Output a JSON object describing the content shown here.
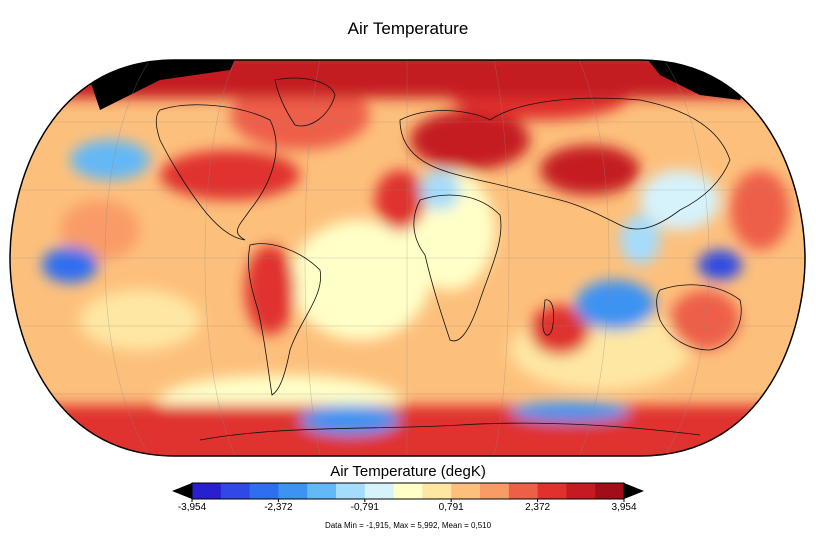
{
  "map": {
    "title": "Air Temperature",
    "projection": "robinson",
    "colorbar": {
      "title": "Air Temperature (degK)",
      "tick_labels": [
        "-3,954",
        "-2,372",
        "-0,791",
        "0,791",
        "2,372",
        "3,954"
      ],
      "bin_colors": [
        "#2a1fd0",
        "#2f48e6",
        "#2f6ef0",
        "#3c93f2",
        "#63b8f6",
        "#a5dcfb",
        "#d6f2fb",
        "#ffffc8",
        "#fee7a3",
        "#fdc07c",
        "#f99b67",
        "#ee5f48",
        "#e0312f",
        "#c51a22",
        "#a30d1a"
      ],
      "overflow_color": "#000000"
    },
    "stats": "Data Min = -1,915, Max = 5,992, Mean = 0,510"
  }
}
